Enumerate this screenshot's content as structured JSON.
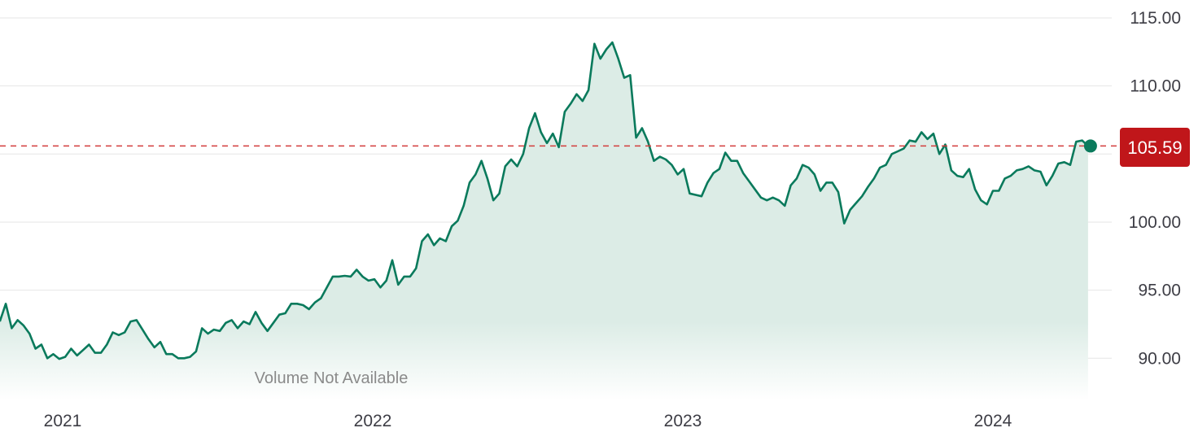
{
  "chart_data": {
    "type": "area",
    "title": "",
    "xlabel": "",
    "ylabel": "",
    "ylim": [
      87.5,
      116
    ],
    "xlim": [
      "2020-10-19",
      "2024-04-22"
    ],
    "grid": true,
    "yticks": [
      90,
      95,
      100,
      105,
      110,
      115
    ],
    "ytick_labels": [
      {
        "value": 90,
        "label": "90.00"
      },
      {
        "value": 95,
        "label": "95.00"
      },
      {
        "value": 100,
        "label": "100.00"
      },
      {
        "value": 110,
        "label": "110.00"
      },
      {
        "value": 115,
        "label": "115.00"
      }
    ],
    "xtick_labels": [
      {
        "date": "2021-01-01",
        "label": "2021"
      },
      {
        "date": "2022-01-01",
        "label": "2022"
      },
      {
        "date": "2023-01-01",
        "label": "2023"
      },
      {
        "date": "2024-01-01",
        "label": "2024"
      }
    ],
    "last_price": {
      "value": 105.59,
      "label": "105.59"
    },
    "volume_note": "Volume Not Available",
    "colors": {
      "line": "#0a7a5c",
      "fill": "#dcece6",
      "reference_line": "#d23b3b",
      "badge": "#c0161a",
      "grid": "#e6e6e6"
    },
    "series": [
      {
        "points": [
          [
            "2020-10-19",
            92.7
          ],
          [
            "2020-10-26",
            94.0
          ],
          [
            "2020-11-02",
            92.2
          ],
          [
            "2020-11-09",
            92.8
          ],
          [
            "2020-11-16",
            92.4
          ],
          [
            "2020-11-23",
            91.8
          ],
          [
            "2020-11-30",
            90.7
          ],
          [
            "2020-12-07",
            91.0
          ],
          [
            "2020-12-14",
            90.0
          ],
          [
            "2020-12-21",
            90.3
          ],
          [
            "2020-12-28",
            89.95
          ],
          [
            "2021-01-04",
            90.1
          ],
          [
            "2021-01-11",
            90.7
          ],
          [
            "2021-01-18",
            90.2
          ],
          [
            "2021-01-25",
            90.6
          ],
          [
            "2021-02-01",
            91.0
          ],
          [
            "2021-02-08",
            90.4
          ],
          [
            "2021-02-15",
            90.4
          ],
          [
            "2021-02-22",
            91.0
          ],
          [
            "2021-03-01",
            91.9
          ],
          [
            "2021-03-08",
            91.7
          ],
          [
            "2021-03-15",
            91.9
          ],
          [
            "2021-03-22",
            92.7
          ],
          [
            "2021-03-29",
            92.8
          ],
          [
            "2021-04-05",
            92.1
          ],
          [
            "2021-04-12",
            91.4
          ],
          [
            "2021-04-19",
            90.8
          ],
          [
            "2021-04-26",
            91.2
          ],
          [
            "2021-05-03",
            90.3
          ],
          [
            "2021-05-10",
            90.3
          ],
          [
            "2021-05-17",
            90.0
          ],
          [
            "2021-05-24",
            90.0
          ],
          [
            "2021-05-31",
            90.1
          ],
          [
            "2021-06-07",
            90.5
          ],
          [
            "2021-06-14",
            92.2
          ],
          [
            "2021-06-21",
            91.8
          ],
          [
            "2021-06-28",
            92.1
          ],
          [
            "2021-07-05",
            92.0
          ],
          [
            "2021-07-12",
            92.6
          ],
          [
            "2021-07-19",
            92.8
          ],
          [
            "2021-07-26",
            92.2
          ],
          [
            "2021-08-02",
            92.7
          ],
          [
            "2021-08-09",
            92.5
          ],
          [
            "2021-08-16",
            93.4
          ],
          [
            "2021-08-23",
            92.6
          ],
          [
            "2021-08-30",
            92.0
          ],
          [
            "2021-09-06",
            92.6
          ],
          [
            "2021-09-13",
            93.2
          ],
          [
            "2021-09-20",
            93.3
          ],
          [
            "2021-09-27",
            94.0
          ],
          [
            "2021-10-04",
            94.0
          ],
          [
            "2021-10-11",
            93.9
          ],
          [
            "2021-10-18",
            93.6
          ],
          [
            "2021-10-25",
            94.1
          ],
          [
            "2021-11-01",
            94.4
          ],
          [
            "2021-11-08",
            95.2
          ],
          [
            "2021-11-15",
            96.0
          ],
          [
            "2021-11-22",
            96.0
          ],
          [
            "2021-11-29",
            96.05
          ],
          [
            "2021-12-06",
            96.0
          ],
          [
            "2021-12-13",
            96.5
          ],
          [
            "2021-12-20",
            96.0
          ],
          [
            "2021-12-27",
            95.7
          ],
          [
            "2022-01-03",
            95.8
          ],
          [
            "2022-01-10",
            95.2
          ],
          [
            "2022-01-17",
            95.7
          ],
          [
            "2022-01-24",
            97.2
          ],
          [
            "2022-01-31",
            95.4
          ],
          [
            "2022-02-07",
            96.0
          ],
          [
            "2022-02-14",
            96.0
          ],
          [
            "2022-02-21",
            96.6
          ],
          [
            "2022-02-28",
            98.6
          ],
          [
            "2022-03-07",
            99.1
          ],
          [
            "2022-03-14",
            98.3
          ],
          [
            "2022-03-21",
            98.8
          ],
          [
            "2022-03-28",
            98.6
          ],
          [
            "2022-04-04",
            99.7
          ],
          [
            "2022-04-11",
            100.1
          ],
          [
            "2022-04-18",
            101.2
          ],
          [
            "2022-04-25",
            102.9
          ],
          [
            "2022-05-02",
            103.5
          ],
          [
            "2022-05-09",
            104.5
          ],
          [
            "2022-05-16",
            103.2
          ],
          [
            "2022-05-23",
            101.6
          ],
          [
            "2022-05-30",
            102.1
          ],
          [
            "2022-06-06",
            104.1
          ],
          [
            "2022-06-13",
            104.6
          ],
          [
            "2022-06-20",
            104.1
          ],
          [
            "2022-06-27",
            105.0
          ],
          [
            "2022-07-04",
            106.9
          ],
          [
            "2022-07-11",
            108.0
          ],
          [
            "2022-07-18",
            106.6
          ],
          [
            "2022-07-25",
            105.8
          ],
          [
            "2022-08-01",
            106.5
          ],
          [
            "2022-08-08",
            105.5
          ],
          [
            "2022-08-15",
            108.1
          ],
          [
            "2022-08-22",
            108.7
          ],
          [
            "2022-08-29",
            109.4
          ],
          [
            "2022-09-05",
            108.9
          ],
          [
            "2022-09-12",
            109.7
          ],
          [
            "2022-09-19",
            113.1
          ],
          [
            "2022-09-26",
            112.0
          ],
          [
            "2022-10-03",
            112.7
          ],
          [
            "2022-10-10",
            113.2
          ],
          [
            "2022-10-17",
            112.0
          ],
          [
            "2022-10-24",
            110.6
          ],
          [
            "2022-10-31",
            110.8
          ],
          [
            "2022-11-07",
            106.2
          ],
          [
            "2022-11-14",
            106.9
          ],
          [
            "2022-11-21",
            105.9
          ],
          [
            "2022-11-28",
            104.5
          ],
          [
            "2022-12-05",
            104.8
          ],
          [
            "2022-12-12",
            104.6
          ],
          [
            "2022-12-19",
            104.2
          ],
          [
            "2022-12-26",
            103.5
          ],
          [
            "2023-01-02",
            103.9
          ],
          [
            "2023-01-09",
            102.1
          ],
          [
            "2023-01-16",
            102.0
          ],
          [
            "2023-01-23",
            101.9
          ],
          [
            "2023-01-30",
            102.9
          ],
          [
            "2023-02-06",
            103.6
          ],
          [
            "2023-02-13",
            103.9
          ],
          [
            "2023-02-20",
            105.1
          ],
          [
            "2023-02-27",
            104.5
          ],
          [
            "2023-03-06",
            104.5
          ],
          [
            "2023-03-13",
            103.6
          ],
          [
            "2023-03-20",
            103.0
          ],
          [
            "2023-03-27",
            102.4
          ],
          [
            "2023-04-03",
            101.8
          ],
          [
            "2023-04-10",
            101.6
          ],
          [
            "2023-04-17",
            101.8
          ],
          [
            "2023-04-24",
            101.6
          ],
          [
            "2023-05-01",
            101.2
          ],
          [
            "2023-05-08",
            102.7
          ],
          [
            "2023-05-15",
            103.2
          ],
          [
            "2023-05-22",
            104.2
          ],
          [
            "2023-05-29",
            104.0
          ],
          [
            "2023-06-05",
            103.5
          ],
          [
            "2023-06-12",
            102.3
          ],
          [
            "2023-06-19",
            102.9
          ],
          [
            "2023-06-26",
            102.9
          ],
          [
            "2023-07-03",
            102.2
          ],
          [
            "2023-07-10",
            99.9
          ],
          [
            "2023-07-17",
            100.9
          ],
          [
            "2023-07-24",
            101.4
          ],
          [
            "2023-07-31",
            101.9
          ],
          [
            "2023-08-07",
            102.6
          ],
          [
            "2023-08-14",
            103.2
          ],
          [
            "2023-08-21",
            104.0
          ],
          [
            "2023-08-28",
            104.2
          ],
          [
            "2023-09-04",
            105.0
          ],
          [
            "2023-09-11",
            105.2
          ],
          [
            "2023-09-18",
            105.4
          ],
          [
            "2023-09-25",
            106.0
          ],
          [
            "2023-10-02",
            105.9
          ],
          [
            "2023-10-09",
            106.6
          ],
          [
            "2023-10-16",
            106.1
          ],
          [
            "2023-10-23",
            106.5
          ],
          [
            "2023-10-30",
            105.0
          ],
          [
            "2023-11-06",
            105.7
          ],
          [
            "2023-11-13",
            103.8
          ],
          [
            "2023-11-20",
            103.4
          ],
          [
            "2023-11-27",
            103.3
          ],
          [
            "2023-12-04",
            103.9
          ],
          [
            "2023-12-11",
            102.4
          ],
          [
            "2023-12-18",
            101.6
          ],
          [
            "2023-12-25",
            101.3
          ],
          [
            "2024-01-01",
            102.3
          ],
          [
            "2024-01-08",
            102.3
          ],
          [
            "2024-01-15",
            103.2
          ],
          [
            "2024-01-22",
            103.4
          ],
          [
            "2024-01-29",
            103.8
          ],
          [
            "2024-02-05",
            103.9
          ],
          [
            "2024-02-12",
            104.1
          ],
          [
            "2024-02-19",
            103.8
          ],
          [
            "2024-02-26",
            103.7
          ],
          [
            "2024-03-04",
            102.7
          ],
          [
            "2024-03-11",
            103.4
          ],
          [
            "2024-03-18",
            104.3
          ],
          [
            "2024-03-25",
            104.4
          ],
          [
            "2024-04-01",
            104.2
          ],
          [
            "2024-04-08",
            105.9
          ],
          [
            "2024-04-15",
            106.0
          ],
          [
            "2024-04-22",
            105.59
          ]
        ]
      }
    ]
  }
}
